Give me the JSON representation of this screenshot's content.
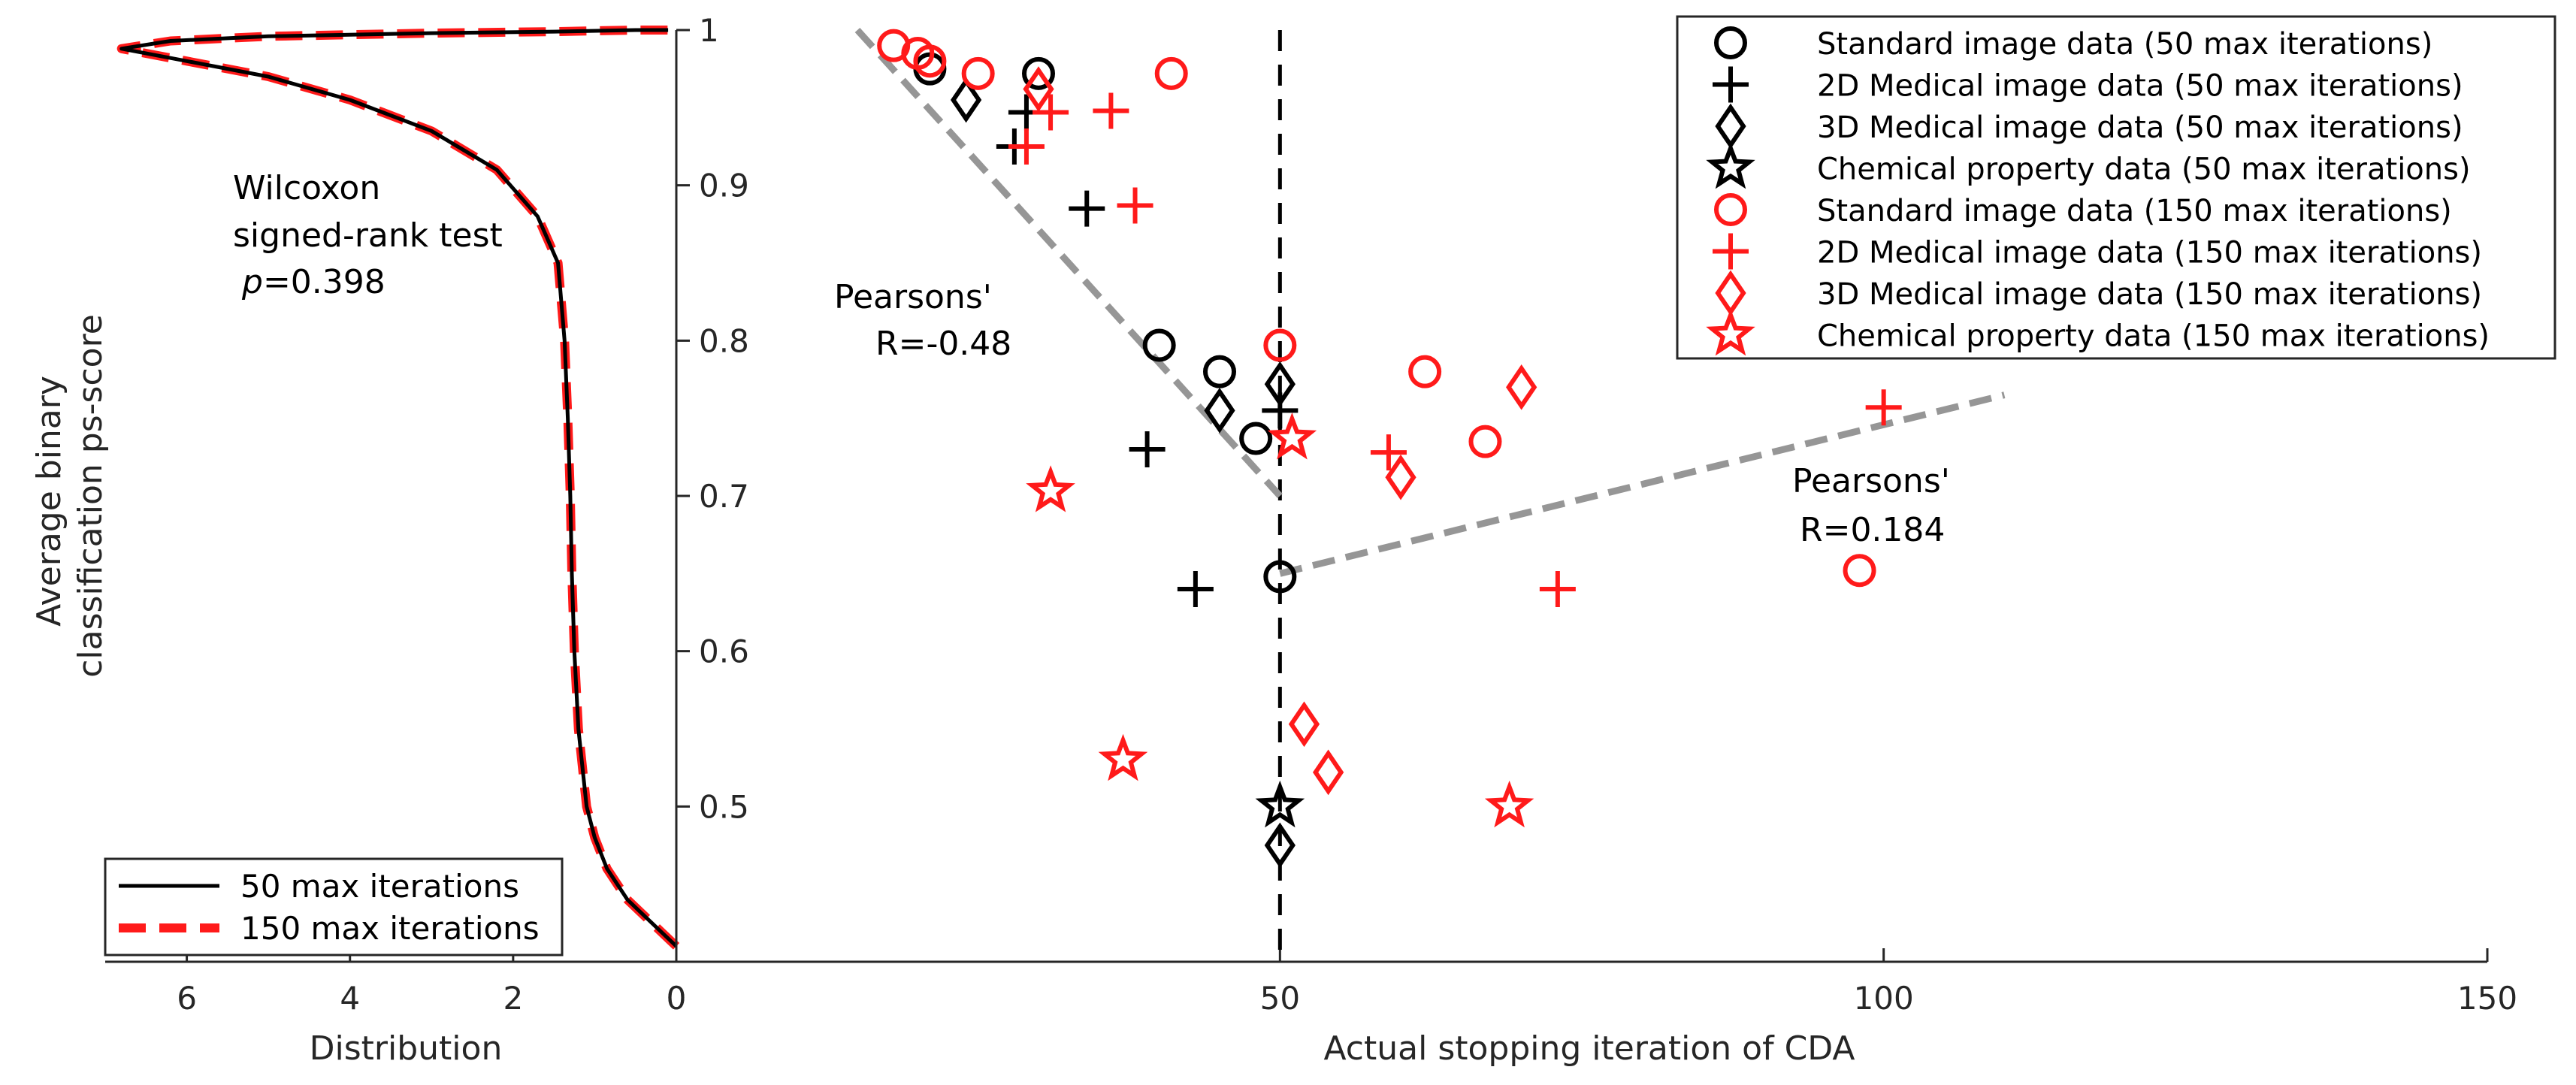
{
  "chart_data": [
    {
      "type": "line",
      "panel": "distribution",
      "xlabel": "Distribution",
      "ylabel": "Average binary classification ps-score",
      "ylabel_lines": [
        "Average binary",
        "classification ps-score"
      ],
      "xlim": [
        7,
        0
      ],
      "ylim": [
        0.4,
        1
      ],
      "x_ticks": [
        "6",
        "4",
        "2",
        "0"
      ],
      "y_ticks": [
        "1",
        "0.9",
        "0.8",
        "0.7",
        "0.6",
        "0.5"
      ],
      "annotation": {
        "line1": "Wilcoxon",
        "line2": "signed-rank test",
        "p_symbol": "p",
        "p_value": "=0.398"
      },
      "legend": {
        "position": "bottom-left",
        "items": [
          "50 max iterations",
          "150 max iterations"
        ]
      },
      "series": [
        {
          "name": "50 max iterations",
          "color": "#000000",
          "style": "solid",
          "points": [
            [
              0,
              0.41
            ],
            [
              0.3,
              0.425
            ],
            [
              0.6,
              0.44
            ],
            [
              0.85,
              0.46
            ],
            [
              1.0,
              0.48
            ],
            [
              1.1,
              0.5
            ],
            [
              1.2,
              0.55
            ],
            [
              1.25,
              0.6
            ],
            [
              1.28,
              0.65
            ],
            [
              1.3,
              0.7
            ],
            [
              1.33,
              0.75
            ],
            [
              1.37,
              0.8
            ],
            [
              1.45,
              0.85
            ],
            [
              1.7,
              0.88
            ],
            [
              2.2,
              0.91
            ],
            [
              3.0,
              0.935
            ],
            [
              4.0,
              0.955
            ],
            [
              5.0,
              0.97
            ],
            [
              6.0,
              0.98
            ],
            [
              6.8,
              0.988
            ],
            [
              6.2,
              0.993
            ],
            [
              5.0,
              0.996
            ],
            [
              3.0,
              0.998
            ],
            [
              1.5,
              0.999
            ],
            [
              0.5,
              1.0
            ],
            [
              0.1,
              1.0
            ]
          ]
        },
        {
          "name": "150 max iterations",
          "color": "#ff1a1a",
          "style": "dashed",
          "points": [
            [
              0,
              0.41
            ],
            [
              0.3,
              0.425
            ],
            [
              0.6,
              0.44
            ],
            [
              0.85,
              0.46
            ],
            [
              1.0,
              0.48
            ],
            [
              1.1,
              0.5
            ],
            [
              1.2,
              0.55
            ],
            [
              1.25,
              0.6
            ],
            [
              1.28,
              0.65
            ],
            [
              1.3,
              0.7
            ],
            [
              1.33,
              0.75
            ],
            [
              1.37,
              0.8
            ],
            [
              1.45,
              0.85
            ],
            [
              1.7,
              0.88
            ],
            [
              2.2,
              0.91
            ],
            [
              3.0,
              0.935
            ],
            [
              4.0,
              0.955
            ],
            [
              5.0,
              0.97
            ],
            [
              6.0,
              0.98
            ],
            [
              6.8,
              0.988
            ],
            [
              6.2,
              0.993
            ],
            [
              5.0,
              0.996
            ],
            [
              3.0,
              0.998
            ],
            [
              1.5,
              0.999
            ],
            [
              0.5,
              1.0
            ],
            [
              0.1,
              1.0
            ]
          ]
        }
      ]
    },
    {
      "type": "scatter",
      "panel": "stopping-iteration",
      "xlabel": "Actual stopping iteration of CDA",
      "xlim": [
        0,
        150
      ],
      "ylim": [
        0.4,
        1
      ],
      "x_ticks": [
        "0",
        "50",
        "100",
        "150"
      ],
      "vertical_reference_x": 50,
      "trendlines": [
        {
          "label_line1": "Pearsons'",
          "label_line2": "R=-0.48",
          "x": [
            15,
            50
          ],
          "y": [
            1.0,
            0.7
          ]
        },
        {
          "label_line1": "Pearsons'",
          "label_line2": "R=0.184",
          "x": [
            50,
            110
          ],
          "y": [
            0.65,
            0.765
          ]
        }
      ],
      "legend_position": "top-right",
      "series": [
        {
          "name": "Standard image data (50 max iterations)",
          "marker": "circle",
          "color": "#000000",
          "points": [
            [
              21,
              0.975
            ],
            [
              30,
              0.972
            ],
            [
              40,
              0.797
            ],
            [
              45,
              0.78
            ],
            [
              48,
              0.737
            ],
            [
              50,
              0.648
            ]
          ]
        },
        {
          "name": "2D Medical image data (50 max iterations)",
          "marker": "plus",
          "color": "#000000",
          "points": [
            [
              28,
              0.925
            ],
            [
              29,
              0.947
            ],
            [
              34,
              0.885
            ],
            [
              39,
              0.73
            ],
            [
              43,
              0.64
            ],
            [
              50,
              0.755
            ]
          ]
        },
        {
          "name": "3D Medical image data (50 max iterations)",
          "marker": "diamond",
          "color": "#000000",
          "points": [
            [
              24,
              0.955
            ],
            [
              45,
              0.755
            ],
            [
              50,
              0.772
            ],
            [
              50,
              0.475
            ]
          ]
        },
        {
          "name": "Chemical property data (50 max iterations)",
          "marker": "star",
          "color": "#000000",
          "points": [
            [
              50,
              0.5
            ]
          ]
        },
        {
          "name": "Standard image data (150 max iterations)",
          "marker": "circle",
          "color": "#ff1a1a",
          "points": [
            [
              18,
              0.99
            ],
            [
              20,
              0.985
            ],
            [
              21,
              0.98
            ],
            [
              25,
              0.972
            ],
            [
              41,
              0.972
            ],
            [
              50,
              0.797
            ],
            [
              62,
              0.78
            ],
            [
              67,
              0.735
            ],
            [
              98,
              0.652
            ]
          ]
        },
        {
          "name": "2D Medical image data (150 max iterations)",
          "marker": "plus",
          "color": "#ff1a1a",
          "points": [
            [
              29,
              0.925
            ],
            [
              31,
              0.947
            ],
            [
              36,
              0.948
            ],
            [
              38,
              0.887
            ],
            [
              59,
              0.728
            ],
            [
              73,
              0.64
            ],
            [
              100,
              0.757
            ]
          ]
        },
        {
          "name": "3D Medical image data (150 max iterations)",
          "marker": "diamond",
          "color": "#ff1a1a",
          "points": [
            [
              30,
              0.962
            ],
            [
              52,
              0.553
            ],
            [
              54,
              0.522
            ],
            [
              60,
              0.712
            ],
            [
              70,
              0.77
            ]
          ]
        },
        {
          "name": "Chemical property data (150 max iterations)",
          "marker": "star",
          "color": "#ff1a1a",
          "points": [
            [
              31,
              0.703
            ],
            [
              37,
              0.53
            ],
            [
              51,
              0.737
            ],
            [
              69,
              0.5
            ]
          ]
        }
      ]
    }
  ]
}
